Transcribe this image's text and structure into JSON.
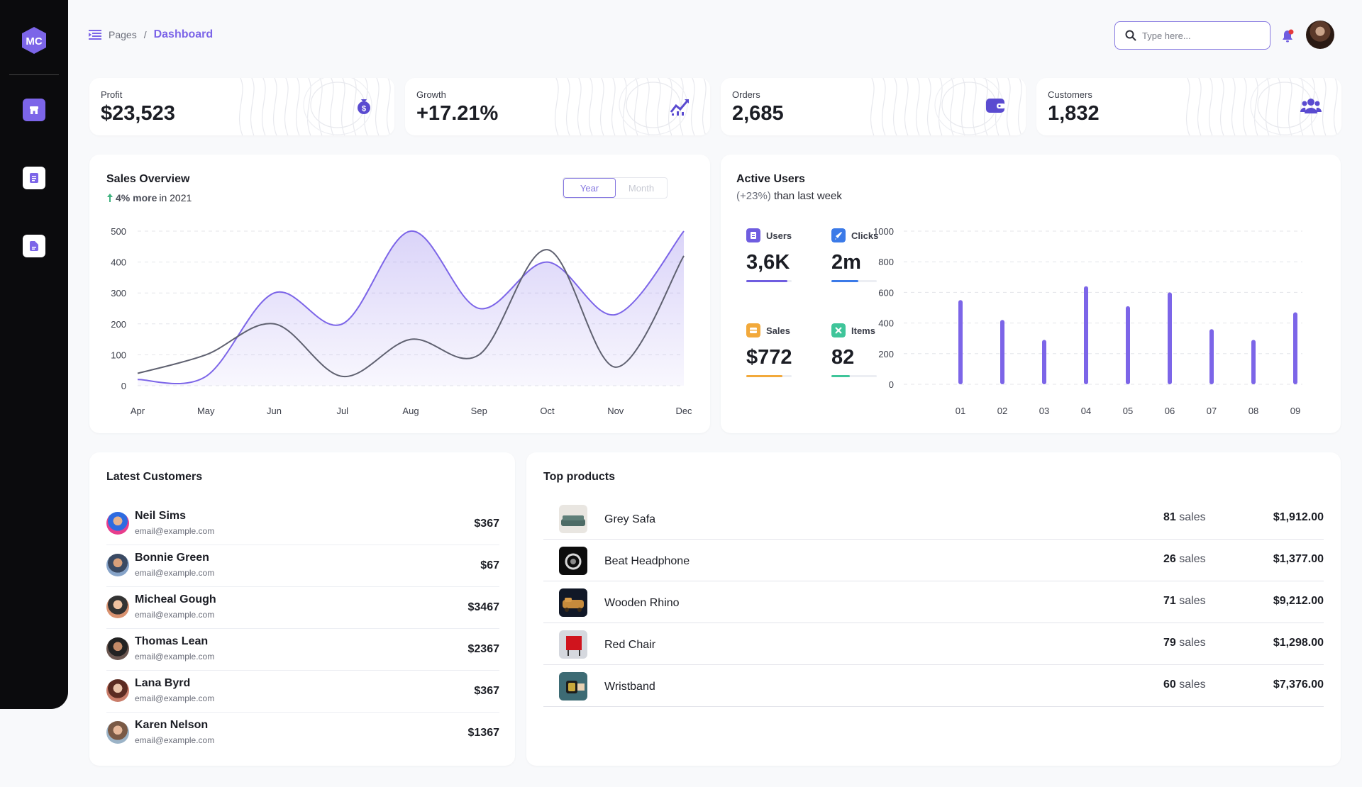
{
  "sidebar": {
    "logo": "MC",
    "items": [
      {
        "icon": "store-icon",
        "active": true
      },
      {
        "icon": "document-icon",
        "active": false
      },
      {
        "icon": "file-icon",
        "active": false
      }
    ]
  },
  "header": {
    "breadcrumb_parent": "Pages",
    "breadcrumb_separator": "/",
    "breadcrumb_current": "Dashboard",
    "search_placeholder": "Type here..."
  },
  "stats": [
    {
      "label": "Profit",
      "value": "$23,523",
      "icon": "money-bag-icon"
    },
    {
      "label": "Growth",
      "value": "+17.21%",
      "icon": "trend-chart-icon"
    },
    {
      "label": "Orders",
      "value": "2,685",
      "icon": "wallet-icon"
    },
    {
      "label": "Customers",
      "value": "1,832",
      "icon": "users-icon"
    }
  ],
  "sales_overview": {
    "title": "Sales Overview",
    "subtitle_highlight": "4% more",
    "subtitle_rest": "in 2021",
    "toggle": [
      "Year",
      "Month"
    ]
  },
  "active_users": {
    "title": "Active Users",
    "subtitle_pct": "(+23%)",
    "subtitle_rest": "than last week",
    "metrics": [
      {
        "label": "Users",
        "value": "3,6K",
        "color": "#6f5de0",
        "fill": 0.9
      },
      {
        "label": "Clicks",
        "value": "2m",
        "color": "#3b7ae8",
        "fill": 0.6
      },
      {
        "label": "Sales",
        "value": "$772",
        "color": "#f2a93b",
        "fill": 0.8
      },
      {
        "label": "Items",
        "value": "82",
        "color": "#3fc59a",
        "fill": 0.4
      }
    ]
  },
  "chart_data": [
    {
      "type": "line",
      "categories": [
        "Apr",
        "May",
        "Jun",
        "Jul",
        "Aug",
        "Sep",
        "Oct",
        "Nov",
        "Dec"
      ],
      "yticks": [
        0,
        100,
        200,
        300,
        400,
        500
      ],
      "ylim": [
        0,
        500
      ],
      "series": [
        {
          "color": "#7c65e8",
          "area": true,
          "values": [
            20,
            30,
            300,
            200,
            500,
            250,
            400,
            230,
            500
          ]
        },
        {
          "color": "#5f6170",
          "area": false,
          "values": [
            40,
            100,
            200,
            30,
            150,
            100,
            440,
            60,
            420
          ]
        }
      ]
    },
    {
      "type": "bar",
      "categories": [
        "01",
        "02",
        "03",
        "04",
        "05",
        "06",
        "07",
        "08",
        "09"
      ],
      "yticks": [
        0,
        200,
        400,
        600,
        800,
        1000
      ],
      "ylim": [
        0,
        1000
      ],
      "color": "#7c65e8",
      "values": [
        550,
        420,
        290,
        640,
        510,
        600,
        360,
        290,
        470
      ]
    }
  ],
  "latest_customers": {
    "title": "Latest Customers",
    "rows": [
      {
        "name": "Neil Sims",
        "email": "email@example.com",
        "amount": "$367"
      },
      {
        "name": "Bonnie Green",
        "email": "email@example.com",
        "amount": "$67"
      },
      {
        "name": "Micheal Gough",
        "email": "email@example.com",
        "amount": "$3467"
      },
      {
        "name": "Thomas Lean",
        "email": "email@example.com",
        "amount": "$2367"
      },
      {
        "name": "Lana Byrd",
        "email": "email@example.com",
        "amount": "$367"
      },
      {
        "name": "Karen Nelson",
        "email": "email@example.com",
        "amount": "$1367"
      }
    ]
  },
  "top_products": {
    "title": "Top products",
    "sales_word": "sales",
    "rows": [
      {
        "name": "Grey Safa",
        "sales": "81",
        "price": "$1,912.00"
      },
      {
        "name": "Beat Headphone",
        "sales": "26",
        "price": "$1,377.00"
      },
      {
        "name": "Wooden Rhino",
        "sales": "71",
        "price": "$9,212.00"
      },
      {
        "name": "Red Chair",
        "sales": "79",
        "price": "$1,298.00"
      },
      {
        "name": "Wristband",
        "sales": "60",
        "price": "$7,376.00"
      }
    ]
  }
}
